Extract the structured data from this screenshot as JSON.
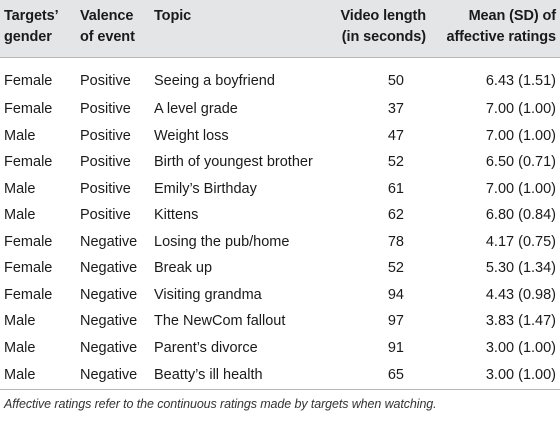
{
  "table": {
    "headers": {
      "gender_line1": "Targets’",
      "gender_line2": "gender",
      "valence_line1": "Valence",
      "valence_line2": "of event",
      "topic": "Topic",
      "length_line1": "Video length",
      "length_line2": "(in seconds)",
      "mean_line1": "Mean (SD) of",
      "mean_line2": "affective ratings"
    },
    "rows": [
      {
        "gender": "Female",
        "valence": "Positive",
        "topic": "Seeing a boyfriend",
        "length": "50",
        "mean": "6.43 (1.51)"
      },
      {
        "gender": "Female",
        "valence": "Positive",
        "topic": "A level grade",
        "length": "37",
        "mean": "7.00 (1.00)"
      },
      {
        "gender": "Male",
        "valence": "Positive",
        "topic": "Weight loss",
        "length": "47",
        "mean": "7.00 (1.00)"
      },
      {
        "gender": "Female",
        "valence": "Positive",
        "topic": "Birth of youngest brother",
        "length": "52",
        "mean": "6.50 (0.71)"
      },
      {
        "gender": "Male",
        "valence": "Positive",
        "topic": "Emily’s Birthday",
        "length": "61",
        "mean": "7.00 (1.00)"
      },
      {
        "gender": "Male",
        "valence": "Positive",
        "topic": "Kittens",
        "length": "62",
        "mean": "6.80 (0.84)"
      },
      {
        "gender": "Female",
        "valence": "Negative",
        "topic": "Losing the pub/home",
        "length": "78",
        "mean": "4.17 (0.75)"
      },
      {
        "gender": "Female",
        "valence": "Negative",
        "topic": "Break up",
        "length": "52",
        "mean": "5.30 (1.34)"
      },
      {
        "gender": "Female",
        "valence": "Negative",
        "topic": "Visiting grandma",
        "length": "94",
        "mean": "4.43 (0.98)"
      },
      {
        "gender": "Male",
        "valence": "Negative",
        "topic": "The NewCom fallout",
        "length": "97",
        "mean": "3.83 (1.47)"
      },
      {
        "gender": "Male",
        "valence": "Negative",
        "topic": "Parent’s divorce",
        "length": "91",
        "mean": "3.00 (1.00)"
      },
      {
        "gender": "Male",
        "valence": "Negative",
        "topic": "Beatty’s ill health",
        "length": "65",
        "mean": "3.00 (1.00)"
      }
    ],
    "footnote": "Affective ratings refer to the continuous ratings made by targets when watching."
  }
}
